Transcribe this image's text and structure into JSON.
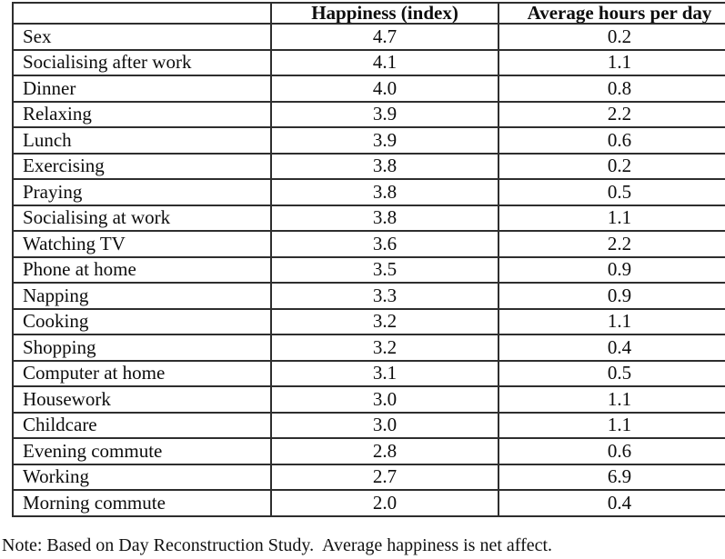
{
  "table": {
    "columns": [
      "",
      "Happiness (index)",
      "Average hours per day"
    ],
    "rows": [
      {
        "activity": "Sex",
        "happiness": "4.7",
        "hours": "0.2"
      },
      {
        "activity": "Socialising after work",
        "happiness": "4.1",
        "hours": "1.1"
      },
      {
        "activity": "Dinner",
        "happiness": "4.0",
        "hours": "0.8"
      },
      {
        "activity": "Relaxing",
        "happiness": "3.9",
        "hours": "2.2"
      },
      {
        "activity": "Lunch",
        "happiness": "3.9",
        "hours": "0.6"
      },
      {
        "activity": "Exercising",
        "happiness": "3.8",
        "hours": "0.2"
      },
      {
        "activity": "Praying",
        "happiness": "3.8",
        "hours": "0.5"
      },
      {
        "activity": "Socialising at work",
        "happiness": "3.8",
        "hours": "1.1"
      },
      {
        "activity": "Watching TV",
        "happiness": "3.6",
        "hours": "2.2"
      },
      {
        "activity": "Phone at home",
        "happiness": "3.5",
        "hours": "0.9"
      },
      {
        "activity": "Napping",
        "happiness": "3.3",
        "hours": "0.9"
      },
      {
        "activity": "Cooking",
        "happiness": "3.2",
        "hours": "1.1"
      },
      {
        "activity": "Shopping",
        "happiness": "3.2",
        "hours": "0.4"
      },
      {
        "activity": "Computer at home",
        "happiness": "3.1",
        "hours": "0.5"
      },
      {
        "activity": "Housework",
        "happiness": "3.0",
        "hours": "1.1"
      },
      {
        "activity": "Childcare",
        "happiness": "3.0",
        "hours": "1.1"
      },
      {
        "activity": "Evening commute",
        "happiness": "2.8",
        "hours": "0.6"
      },
      {
        "activity": "Working",
        "happiness": "2.7",
        "hours": "6.9"
      },
      {
        "activity": "Morning commute",
        "happiness": "2.0",
        "hours": "0.4"
      }
    ]
  },
  "note": "Note: Based on Day Reconstruction Study.  Average happiness is net affect.",
  "colors": {
    "background": "#ffffff",
    "text": "#0d0d0d",
    "border": "#2e2e2e"
  }
}
